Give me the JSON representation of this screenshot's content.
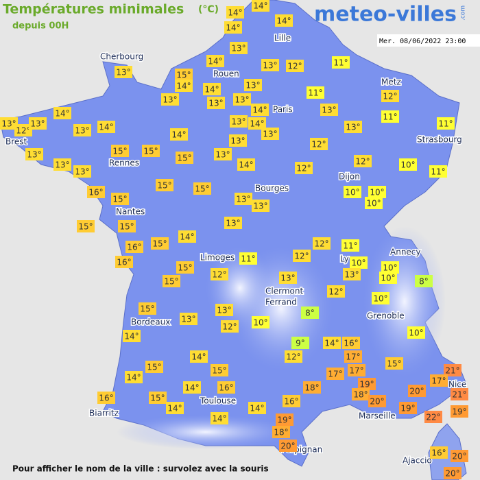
{
  "header": {
    "title": "Températures minimales",
    "unit": "(°C)",
    "subtitle": "depuis 00H"
  },
  "logo": {
    "name": "meteo-villes",
    "suffix": ".com"
  },
  "date": "Mer. 08/06/2022 23:00",
  "cities": [
    "Cherbourg",
    "Lille",
    "Rouen",
    "Metz",
    "Paris",
    "Brest",
    "Strasbourg",
    "Rennes",
    "Dijon",
    "Bourges",
    "Nantes",
    "Annecy",
    "Ly",
    "Limoges",
    "Clermont",
    "Ferrand",
    "Grenoble",
    "Bordeaux",
    "Toulouse",
    "Nice",
    "Biarritz",
    "Marseille",
    "Perpignan",
    "Ajaccio"
  ],
  "readings": [
    "14°",
    "14°",
    "14°",
    "14°",
    "13°",
    "14°",
    "13°",
    "12°",
    "11°",
    "13°",
    "15°",
    "14°",
    "14°",
    "13°",
    "13°",
    "13°",
    "13°",
    "11°",
    "12°",
    "14°",
    "13°",
    "11°",
    "14°",
    "13°",
    "12°",
    "13°",
    "13°",
    "14°",
    "13°",
    "14°",
    "13°",
    "11°",
    "13°",
    "14°",
    "13°",
    "12°",
    "13°",
    "15°",
    "15°",
    "15°",
    "13°",
    "13°",
    "13°",
    "14°",
    "12°",
    "12°",
    "10°",
    "11°",
    "16°",
    "15°",
    "15°",
    "15°",
    "13°",
    "13°",
    "10°",
    "10°",
    "10°",
    "15°",
    "15°",
    "13°",
    "12°",
    "11°",
    "16°",
    "15°",
    "14°",
    "16°",
    "11°",
    "12°",
    "10°",
    "10°",
    "15°",
    "13°",
    "10°",
    "12°",
    "15°",
    "13°",
    "8°",
    "12°",
    "10°",
    "15°",
    "13°",
    "8°",
    "13°",
    "12°",
    "10°",
    "10°",
    "14°",
    "9°",
    "14°",
    "16°",
    "15°",
    "14°",
    "12°",
    "17°",
    "15°",
    "21°",
    "14°",
    "15°",
    "17°",
    "17°",
    "17°",
    "21°",
    "14°",
    "16°",
    "18°",
    "19°",
    "20°",
    "16°",
    "15°",
    "18°",
    "20°",
    "16°",
    "14°",
    "14°",
    "19°",
    "19°",
    "22°",
    "14°",
    "19°",
    "18°",
    "20°",
    "16°",
    "20°",
    "20°"
  ],
  "footer": "Pour afficher le nom de la ville : survolez avec la souris"
}
